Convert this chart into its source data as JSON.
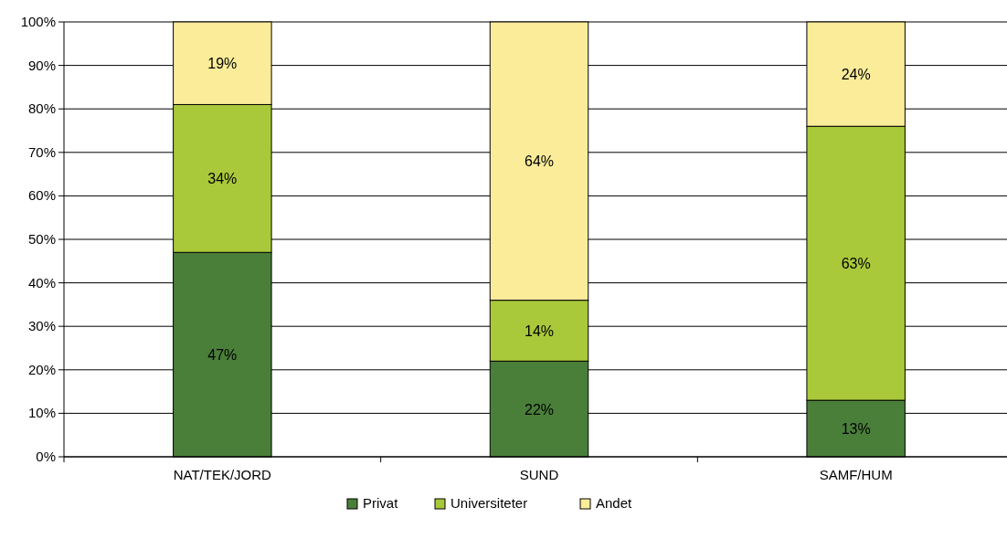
{
  "chart_data": {
    "type": "bar",
    "stacked": true,
    "categories": [
      "NAT/TEK/JORD",
      "SUND",
      "SAMF/HUM"
    ],
    "series": [
      {
        "name": "Privat",
        "color": "#4a7f3a",
        "values": [
          47,
          22,
          13
        ],
        "value_labels": [
          "47%",
          "22%",
          "13%"
        ]
      },
      {
        "name": "Universiteter",
        "color": "#a9c93a",
        "values": [
          34,
          14,
          63
        ],
        "value_labels": [
          "34%",
          "14%",
          "63%"
        ]
      },
      {
        "name": "Andet",
        "color": "#fbec9a",
        "values": [
          19,
          64,
          24
        ],
        "value_labels": [
          "19%",
          "64%",
          "24%"
        ]
      }
    ],
    "ylim": [
      0,
      100
    ],
    "yticks": [
      {
        "value": 0,
        "label": "0%"
      },
      {
        "value": 10,
        "label": "10%"
      },
      {
        "value": 20,
        "label": "20%"
      },
      {
        "value": 30,
        "label": "30%"
      },
      {
        "value": 40,
        "label": "40%"
      },
      {
        "value": 50,
        "label": "50%"
      },
      {
        "value": 60,
        "label": "60%"
      },
      {
        "value": 70,
        "label": "70%"
      },
      {
        "value": 80,
        "label": "80%"
      },
      {
        "value": 90,
        "label": "90%"
      },
      {
        "value": 100,
        "label": "100%"
      }
    ],
    "grid": "y",
    "legend": "bottom"
  }
}
